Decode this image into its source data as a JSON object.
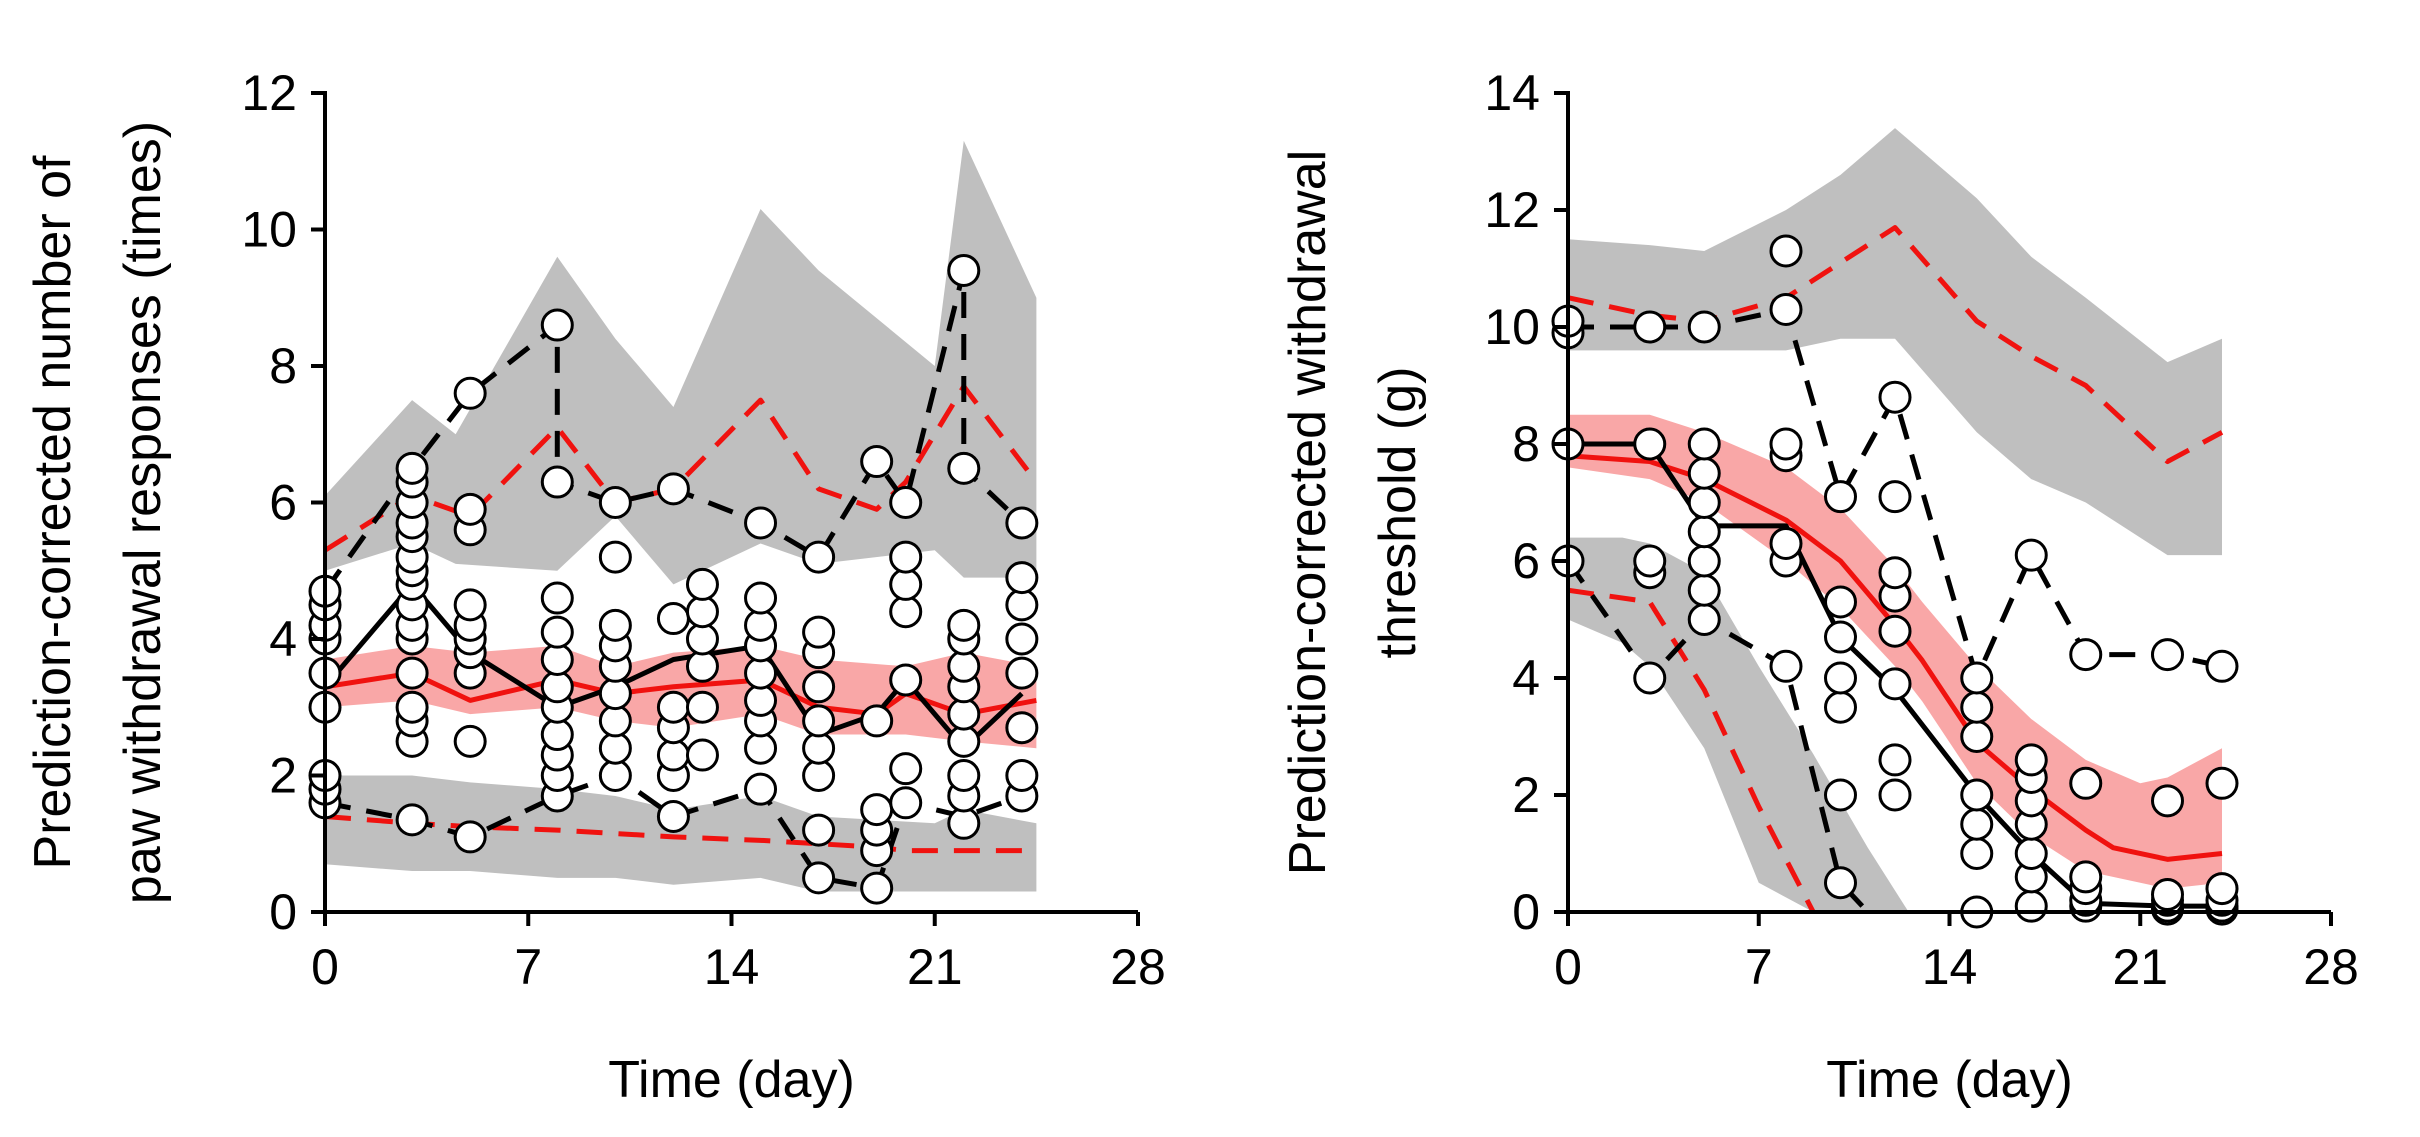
{
  "chart_data": [
    {
      "type": "line",
      "title": "",
      "xlabel": "Time (day)",
      "ylabel_lines": [
        "Prediction-corrected number of",
        "paw withdrawal responses (times)"
      ],
      "xlim": [
        0,
        28
      ],
      "ylim": [
        0,
        12
      ],
      "xticks": [
        0,
        7,
        14,
        21,
        28
      ],
      "yticks": [
        0,
        2,
        4,
        6,
        8,
        10,
        12
      ],
      "bands": [
        {
          "name": "upper-pi",
          "x": [
            0,
            3,
            4.5,
            8,
            10,
            12,
            15,
            17,
            21,
            22,
            24.5
          ],
          "lower": [
            5.0,
            5.4,
            5.1,
            5.0,
            5.8,
            4.8,
            5.4,
            5.1,
            5.3,
            4.9,
            4.9
          ],
          "upper": [
            6.1,
            7.5,
            7.0,
            9.6,
            8.4,
            7.4,
            10.3,
            9.4,
            8.0,
            11.3,
            9.0
          ]
        },
        {
          "name": "median-pi",
          "x": [
            0,
            3,
            5,
            8,
            10,
            12,
            15,
            17,
            20,
            22,
            24.5
          ],
          "lower": [
            3.0,
            3.1,
            2.9,
            3.0,
            2.8,
            2.7,
            2.9,
            2.6,
            2.6,
            2.5,
            2.4
          ],
          "upper": [
            3.7,
            3.9,
            3.8,
            3.9,
            3.6,
            3.8,
            3.9,
            3.7,
            3.6,
            3.8,
            3.6
          ]
        },
        {
          "name": "lower-pi",
          "x": [
            0,
            3,
            5,
            8,
            10,
            12,
            15,
            17,
            21,
            22,
            24.5
          ],
          "lower": [
            0.7,
            0.6,
            0.6,
            0.5,
            0.5,
            0.4,
            0.5,
            0.3,
            0.3,
            0.3,
            0.3
          ],
          "upper": [
            2.0,
            2.0,
            1.9,
            1.8,
            1.7,
            1.5,
            1.7,
            1.4,
            1.3,
            1.5,
            1.3
          ]
        }
      ],
      "series": [
        {
          "name": "predicted-upper",
          "style": "dashed-red",
          "x": [
            0,
            3,
            5,
            8,
            10,
            12,
            15,
            17,
            19,
            20,
            22,
            24.5
          ],
          "y": [
            5.3,
            6.1,
            5.8,
            7.1,
            6.0,
            6.2,
            7.5,
            6.2,
            5.9,
            6.3,
            7.7,
            6.3
          ]
        },
        {
          "name": "predicted-median",
          "style": "solid-red",
          "x": [
            0,
            3,
            5,
            8,
            10,
            12,
            15,
            17,
            19,
            20,
            22,
            24.5
          ],
          "y": [
            3.3,
            3.5,
            3.1,
            3.4,
            3.2,
            3.3,
            3.4,
            3.0,
            2.9,
            3.2,
            2.9,
            3.1
          ]
        },
        {
          "name": "predicted-lower",
          "style": "dashed-red",
          "x": [
            0,
            3,
            5,
            8,
            10,
            12,
            15,
            17,
            19,
            20,
            22,
            24.5
          ],
          "y": [
            1.4,
            1.3,
            1.25,
            1.2,
            1.15,
            1.1,
            1.05,
            1.0,
            0.95,
            0.9,
            0.9,
            0.9
          ]
        },
        {
          "name": "observed-upper",
          "style": "dashed-black",
          "x": [
            0,
            3,
            5,
            8,
            8,
            10,
            12,
            15,
            17,
            19,
            20,
            22,
            22,
            24
          ],
          "y": [
            4.7,
            6.5,
            7.6,
            8.6,
            6.3,
            6.0,
            6.2,
            5.7,
            5.2,
            6.6,
            6.0,
            9.4,
            6.5,
            5.7
          ]
        },
        {
          "name": "observed-median",
          "style": "solid-black",
          "x": [
            0,
            3,
            5,
            8,
            10,
            12,
            15,
            17,
            19,
            20,
            22,
            24
          ],
          "y": [
            3.3,
            4.8,
            3.8,
            3.0,
            3.3,
            3.7,
            3.9,
            2.6,
            2.9,
            3.4,
            2.4,
            3.2
          ]
        },
        {
          "name": "observed-lower",
          "style": "dashed-black",
          "x": [
            0,
            3,
            5,
            8,
            10,
            12,
            15,
            17,
            19,
            20,
            22,
            24
          ],
          "y": [
            1.6,
            1.35,
            1.1,
            1.7,
            2.0,
            1.4,
            1.8,
            0.5,
            0.35,
            1.6,
            1.4,
            1.7
          ]
        }
      ],
      "observations": [
        {
          "x": 0,
          "y": [
            1.6,
            1.8,
            2.0,
            3.0,
            3.5,
            4.0,
            4.2,
            4.5,
            4.7
          ]
        },
        {
          "x": 3,
          "y": [
            1.35,
            2.5,
            2.8,
            3.0,
            3.5,
            4.0,
            4.2,
            4.5,
            4.8,
            5.0,
            5.2,
            5.5,
            5.7,
            6.0,
            6.3,
            6.5
          ]
        },
        {
          "x": 5,
          "y": [
            1.1,
            2.5,
            3.5,
            3.8,
            4.0,
            4.2,
            4.5,
            5.6,
            5.9,
            7.6
          ]
        },
        {
          "x": 8,
          "y": [
            1.7,
            2.0,
            2.3,
            2.6,
            3.0,
            3.3,
            3.7,
            4.1,
            4.6,
            6.3,
            8.6
          ]
        },
        {
          "x": 10,
          "y": [
            2.0,
            2.4,
            2.8,
            3.2,
            3.6,
            3.9,
            4.2,
            5.2,
            6.0
          ]
        },
        {
          "x": 12,
          "y": [
            1.4,
            2.0,
            2.3,
            2.7,
            3.0,
            4.3,
            6.2
          ]
        },
        {
          "x": 13,
          "y": [
            2.3,
            3.0,
            3.6,
            4.0,
            4.4,
            4.8
          ]
        },
        {
          "x": 15,
          "y": [
            1.8,
            2.4,
            2.8,
            3.1,
            3.5,
            3.9,
            4.2,
            4.6,
            5.7
          ]
        },
        {
          "x": 17,
          "y": [
            0.5,
            1.2,
            2.0,
            2.4,
            2.8,
            3.3,
            3.8,
            4.1,
            5.2
          ]
        },
        {
          "x": 19,
          "y": [
            0.35,
            0.9,
            1.2,
            1.5,
            2.8,
            6.6
          ]
        },
        {
          "x": 20,
          "y": [
            1.6,
            2.1,
            3.4,
            4.4,
            4.8,
            5.2,
            6.0
          ]
        },
        {
          "x": 22,
          "y": [
            1.3,
            1.7,
            2.0,
            2.5,
            2.9,
            3.3,
            3.6,
            4.0,
            4.2,
            6.5,
            9.4
          ]
        },
        {
          "x": 24,
          "y": [
            1.7,
            2.0,
            2.7,
            3.5,
            4.0,
            4.5,
            4.9,
            5.7
          ]
        }
      ]
    },
    {
      "type": "line",
      "title": "",
      "xlabel": "Time (day)",
      "ylabel_lines": [
        "Prediction-corrected withdrawal",
        "threshold (g)"
      ],
      "xlim": [
        0,
        28
      ],
      "ylim": [
        0,
        14
      ],
      "xticks": [
        0,
        7,
        14,
        21,
        28
      ],
      "yticks": [
        0,
        2,
        4,
        6,
        8,
        10,
        12,
        14
      ],
      "bands": [
        {
          "name": "upper-pi",
          "x": [
            0,
            3,
            5,
            8,
            10,
            12,
            15,
            17,
            19,
            22,
            24
          ],
          "lower": [
            9.6,
            9.6,
            9.6,
            9.6,
            9.8,
            9.8,
            8.2,
            7.4,
            7.0,
            6.1,
            6.1
          ],
          "upper": [
            11.5,
            11.4,
            11.3,
            12.0,
            12.6,
            13.4,
            12.2,
            11.2,
            10.5,
            9.4,
            9.8
          ]
        },
        {
          "name": "median-pi",
          "x": [
            0,
            3,
            5,
            8,
            10,
            12,
            13,
            15,
            17,
            19,
            21,
            22,
            24
          ],
          "lower": [
            7.6,
            7.4,
            7.0,
            6.0,
            5.2,
            4.2,
            3.6,
            2.2,
            1.3,
            0.7,
            0.5,
            0.4,
            0.5
          ],
          "upper": [
            8.5,
            8.5,
            8.2,
            7.6,
            6.9,
            5.9,
            5.3,
            4.2,
            3.3,
            2.6,
            2.2,
            2.3,
            2.8
          ]
        },
        {
          "name": "lower-pi",
          "x": [
            0,
            2,
            3,
            5,
            7,
            9,
            11,
            12.5
          ],
          "lower": [
            5.0,
            4.6,
            4.2,
            2.8,
            0.5,
            0.0,
            0.0,
            0.0
          ],
          "upper": [
            6.4,
            6.4,
            6.3,
            5.8,
            4.2,
            2.7,
            1.1,
            0.0
          ]
        }
      ],
      "series": [
        {
          "name": "predicted-upper",
          "style": "dashed-red",
          "x": [
            0,
            3,
            5,
            8,
            10,
            12,
            15,
            17,
            19,
            22,
            24
          ],
          "y": [
            10.5,
            10.2,
            10.1,
            10.5,
            11.1,
            11.7,
            10.1,
            9.5,
            9.0,
            7.7,
            8.2
          ]
        },
        {
          "name": "predicted-median",
          "style": "solid-red",
          "x": [
            0,
            3,
            5,
            8,
            10,
            12,
            13,
            15,
            17,
            19,
            20,
            22,
            24
          ],
          "y": [
            7.8,
            7.7,
            7.4,
            6.7,
            6.0,
            4.9,
            4.3,
            2.9,
            2.1,
            1.4,
            1.1,
            0.9,
            1.0
          ]
        },
        {
          "name": "predicted-lower",
          "style": "dashed-red",
          "x": [
            0,
            3,
            5,
            7,
            9
          ],
          "y": [
            5.5,
            5.3,
            3.8,
            1.8,
            0.0
          ]
        },
        {
          "name": "observed-upper",
          "style": "dashed-black",
          "x": [
            0,
            3,
            5,
            8,
            10,
            12,
            15,
            17,
            19,
            22,
            24
          ],
          "y": [
            10.0,
            10.0,
            10.0,
            10.3,
            7.1,
            8.8,
            4.0,
            6.1,
            4.4,
            4.4,
            4.2
          ]
        },
        {
          "name": "observed-median",
          "style": "solid-black",
          "x": [
            0,
            3,
            5,
            8,
            10,
            12,
            15,
            17,
            19,
            22,
            24
          ],
          "y": [
            8.0,
            8.0,
            6.6,
            6.6,
            4.7,
            3.8,
            2.0,
            1.0,
            0.15,
            0.1,
            0.1
          ]
        },
        {
          "name": "observed-lower",
          "style": "dashed-black",
          "x": [
            0,
            3,
            5,
            8,
            10,
            11
          ],
          "y": [
            6.0,
            4.0,
            5.0,
            4.2,
            0.5,
            0.0
          ]
        }
      ],
      "observations": [
        {
          "x": 0,
          "y": [
            6.0,
            8.0,
            9.9,
            10.1
          ]
        },
        {
          "x": 3,
          "y": [
            4.0,
            5.8,
            6.0,
            8.0,
            10.0
          ]
        },
        {
          "x": 5,
          "y": [
            5.0,
            5.5,
            6.0,
            6.5,
            7.0,
            7.5,
            8.0,
            10.0
          ]
        },
        {
          "x": 8,
          "y": [
            4.2,
            6.0,
            6.3,
            7.8,
            8.0,
            10.3,
            11.3
          ]
        },
        {
          "x": 10,
          "y": [
            0.5,
            2.0,
            3.5,
            4.0,
            4.7,
            5.3,
            7.1
          ]
        },
        {
          "x": 12,
          "y": [
            2.0,
            2.6,
            3.9,
            4.8,
            5.4,
            5.8,
            7.1,
            8.8
          ]
        },
        {
          "x": 15,
          "y": [
            0.0,
            1.0,
            1.5,
            2.0,
            3.0,
            3.5,
            4.0
          ]
        },
        {
          "x": 17,
          "y": [
            0.1,
            0.6,
            1.0,
            1.5,
            1.9,
            2.3,
            2.6,
            6.1
          ]
        },
        {
          "x": 19,
          "y": [
            0.1,
            0.2,
            0.4,
            0.6,
            2.2,
            4.4
          ]
        },
        {
          "x": 22,
          "y": [
            0.05,
            0.1,
            0.2,
            0.3,
            1.9,
            4.4
          ]
        },
        {
          "x": 24,
          "y": [
            0.05,
            0.1,
            0.2,
            0.4,
            2.2,
            4.2
          ]
        }
      ]
    }
  ],
  "colors": {
    "band_gray": "#bfbfbf",
    "band_red": "#f9a7a7",
    "predicted_red": "#f0120f",
    "observed_black": "#000000",
    "marker_fill": "#ffffff"
  }
}
